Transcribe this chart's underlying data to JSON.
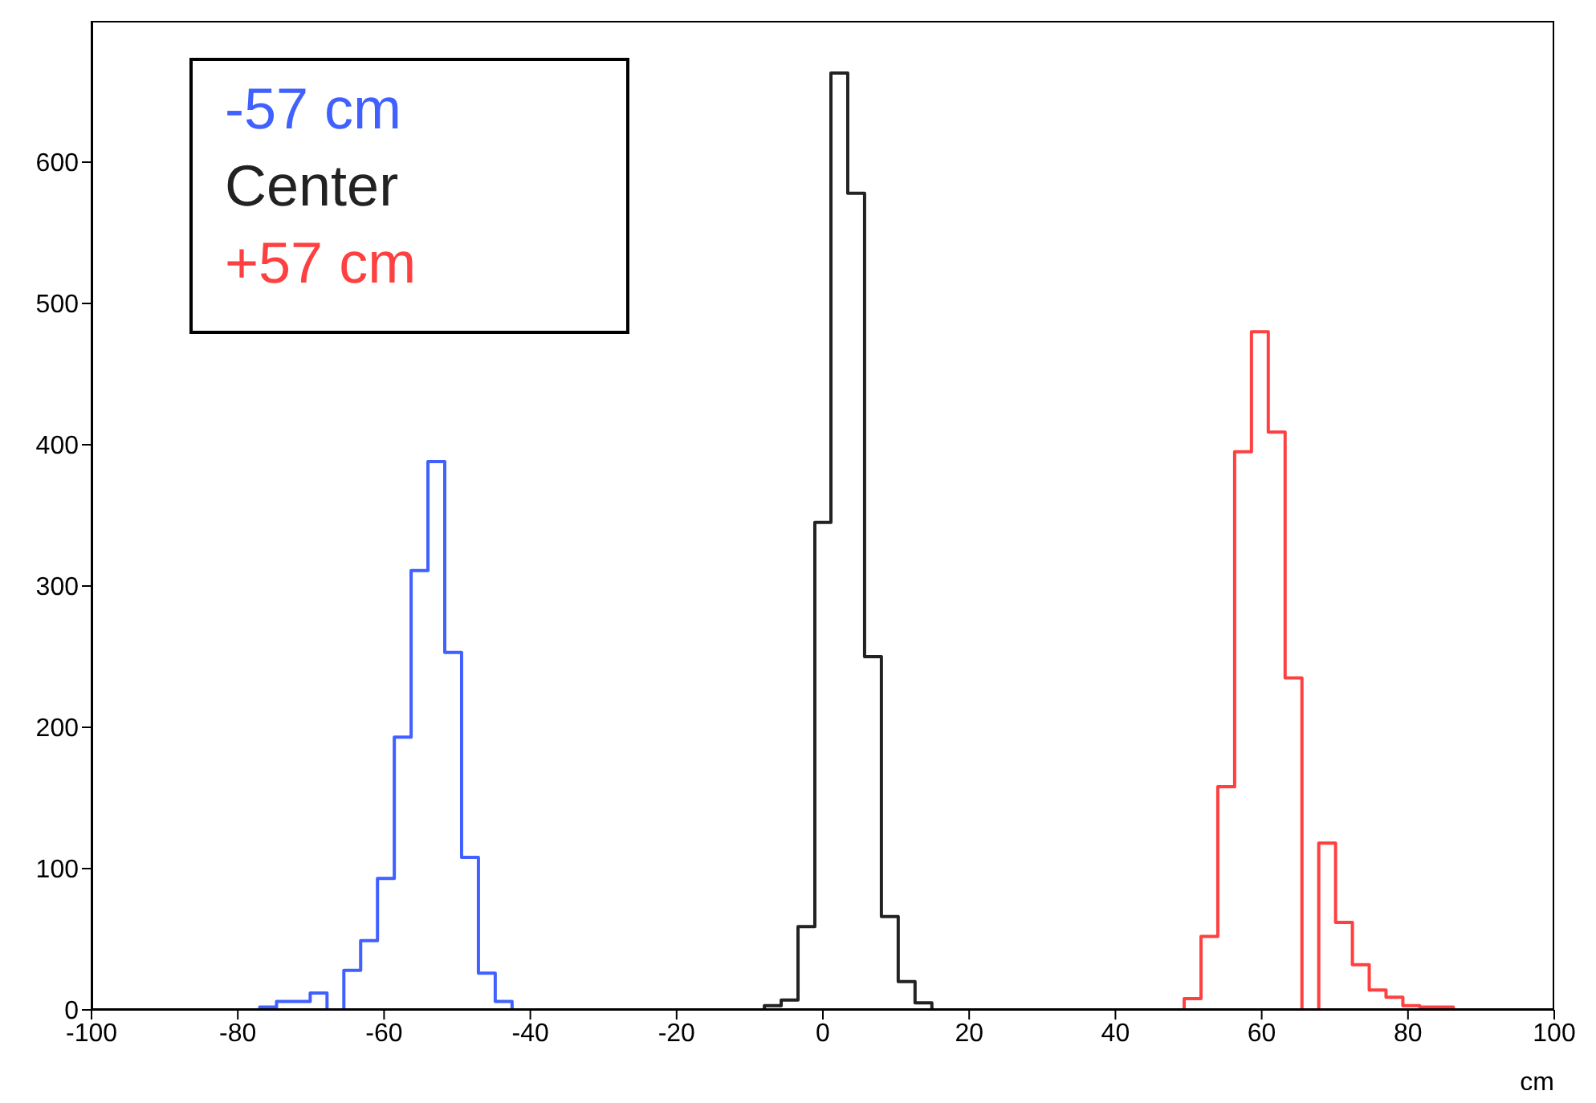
{
  "chart_data": {
    "type": "histogram",
    "xlabel": "cm",
    "xlim": [
      -100,
      100
    ],
    "xticks": [
      -100,
      -80,
      -60,
      -40,
      -20,
      0,
      20,
      40,
      60,
      80,
      100
    ],
    "ylim": [
      0,
      700
    ],
    "yticks": [
      0,
      100,
      200,
      300,
      400,
      500,
      600
    ],
    "grid": false,
    "legend": "top left",
    "bins": [
      -100,
      -97.7,
      -95.4,
      -93.1,
      -90.8,
      -88.5,
      -86.2,
      -83.9,
      -81.6,
      -79.3,
      -77.0,
      -74.7,
      -72.4,
      -70.1,
      -67.8,
      -65.5,
      -63.2,
      -60.9,
      -58.6,
      -56.3,
      -54.0,
      -51.7,
      -49.4,
      -47.1,
      -44.8,
      -42.5,
      -40.2,
      -37.9,
      -35.6,
      -33.3,
      -31.0,
      -28.7,
      -26.4,
      -24.1,
      -21.8,
      -19.5,
      -17.2,
      -14.9,
      -12.6,
      -10.3,
      -8.0,
      -5.7,
      -3.4,
      -1.1,
      1.1,
      3.4,
      5.7,
      8.0,
      10.3,
      12.6,
      14.9,
      17.2,
      19.5,
      21.8,
      24.1,
      26.4,
      28.7,
      31.0,
      33.3,
      35.6,
      37.9,
      40.2,
      42.5,
      44.8,
      47.1,
      49.4,
      51.7,
      54.0,
      56.3,
      58.6,
      60.9,
      63.2,
      65.5,
      67.8,
      70.1,
      72.4,
      74.7,
      77.0,
      79.3,
      81.6,
      83.9,
      86.2,
      88.5,
      90.8,
      93.1,
      95.4,
      97.7,
      100
    ],
    "series": [
      {
        "name": "-57 cm",
        "color": "#4060ff",
        "values": [
          0,
          0,
          0,
          0,
          0,
          0,
          0,
          0,
          0,
          0,
          2,
          6,
          6,
          12,
          0,
          28,
          49,
          93,
          193,
          311,
          388,
          253,
          108,
          26,
          6,
          0,
          0,
          0,
          0,
          0,
          0,
          0,
          0,
          0,
          0,
          0,
          0,
          0,
          0,
          0,
          0,
          0,
          0,
          0,
          0,
          0,
          0,
          0,
          0,
          0,
          0,
          0,
          0,
          0,
          0,
          0,
          0,
          0,
          0,
          0,
          0,
          0,
          0,
          0,
          0,
          0,
          0,
          0,
          0,
          0,
          0,
          0,
          0,
          0,
          0,
          0,
          0,
          0,
          0,
          0,
          0,
          0,
          0,
          0,
          0,
          0,
          0
        ]
      },
      {
        "name": "Center",
        "color": "#222222",
        "values": [
          0,
          0,
          0,
          0,
          0,
          0,
          0,
          0,
          0,
          0,
          0,
          0,
          0,
          0,
          0,
          0,
          0,
          0,
          0,
          0,
          0,
          0,
          0,
          0,
          0,
          0,
          0,
          0,
          0,
          0,
          0,
          0,
          0,
          0,
          0,
          0,
          0,
          0,
          0,
          0,
          3,
          7,
          59,
          345,
          663,
          578,
          250,
          66,
          20,
          5,
          0,
          0,
          0,
          0,
          0,
          0,
          0,
          0,
          0,
          0,
          0,
          0,
          0,
          0,
          0,
          0,
          0,
          0,
          0,
          0,
          0,
          0,
          0,
          0,
          0,
          0,
          0,
          0,
          0,
          0,
          0,
          0,
          0,
          0,
          0,
          0,
          0
        ]
      },
      {
        "name": "+57 cm",
        "color": "#ff4040",
        "values": [
          0,
          0,
          0,
          0,
          0,
          0,
          0,
          0,
          0,
          0,
          0,
          0,
          0,
          0,
          0,
          0,
          0,
          0,
          0,
          0,
          0,
          0,
          0,
          0,
          0,
          0,
          0,
          0,
          0,
          0,
          0,
          0,
          0,
          0,
          0,
          0,
          0,
          0,
          0,
          0,
          0,
          0,
          0,
          0,
          0,
          0,
          0,
          0,
          0,
          0,
          0,
          0,
          0,
          0,
          0,
          0,
          0,
          0,
          0,
          0,
          0,
          0,
          0,
          0,
          0,
          8,
          52,
          158,
          395,
          480,
          409,
          235,
          0,
          118,
          62,
          32,
          14,
          9,
          3,
          2,
          2,
          0,
          0,
          0,
          0,
          0,
          0
        ]
      }
    ]
  }
}
